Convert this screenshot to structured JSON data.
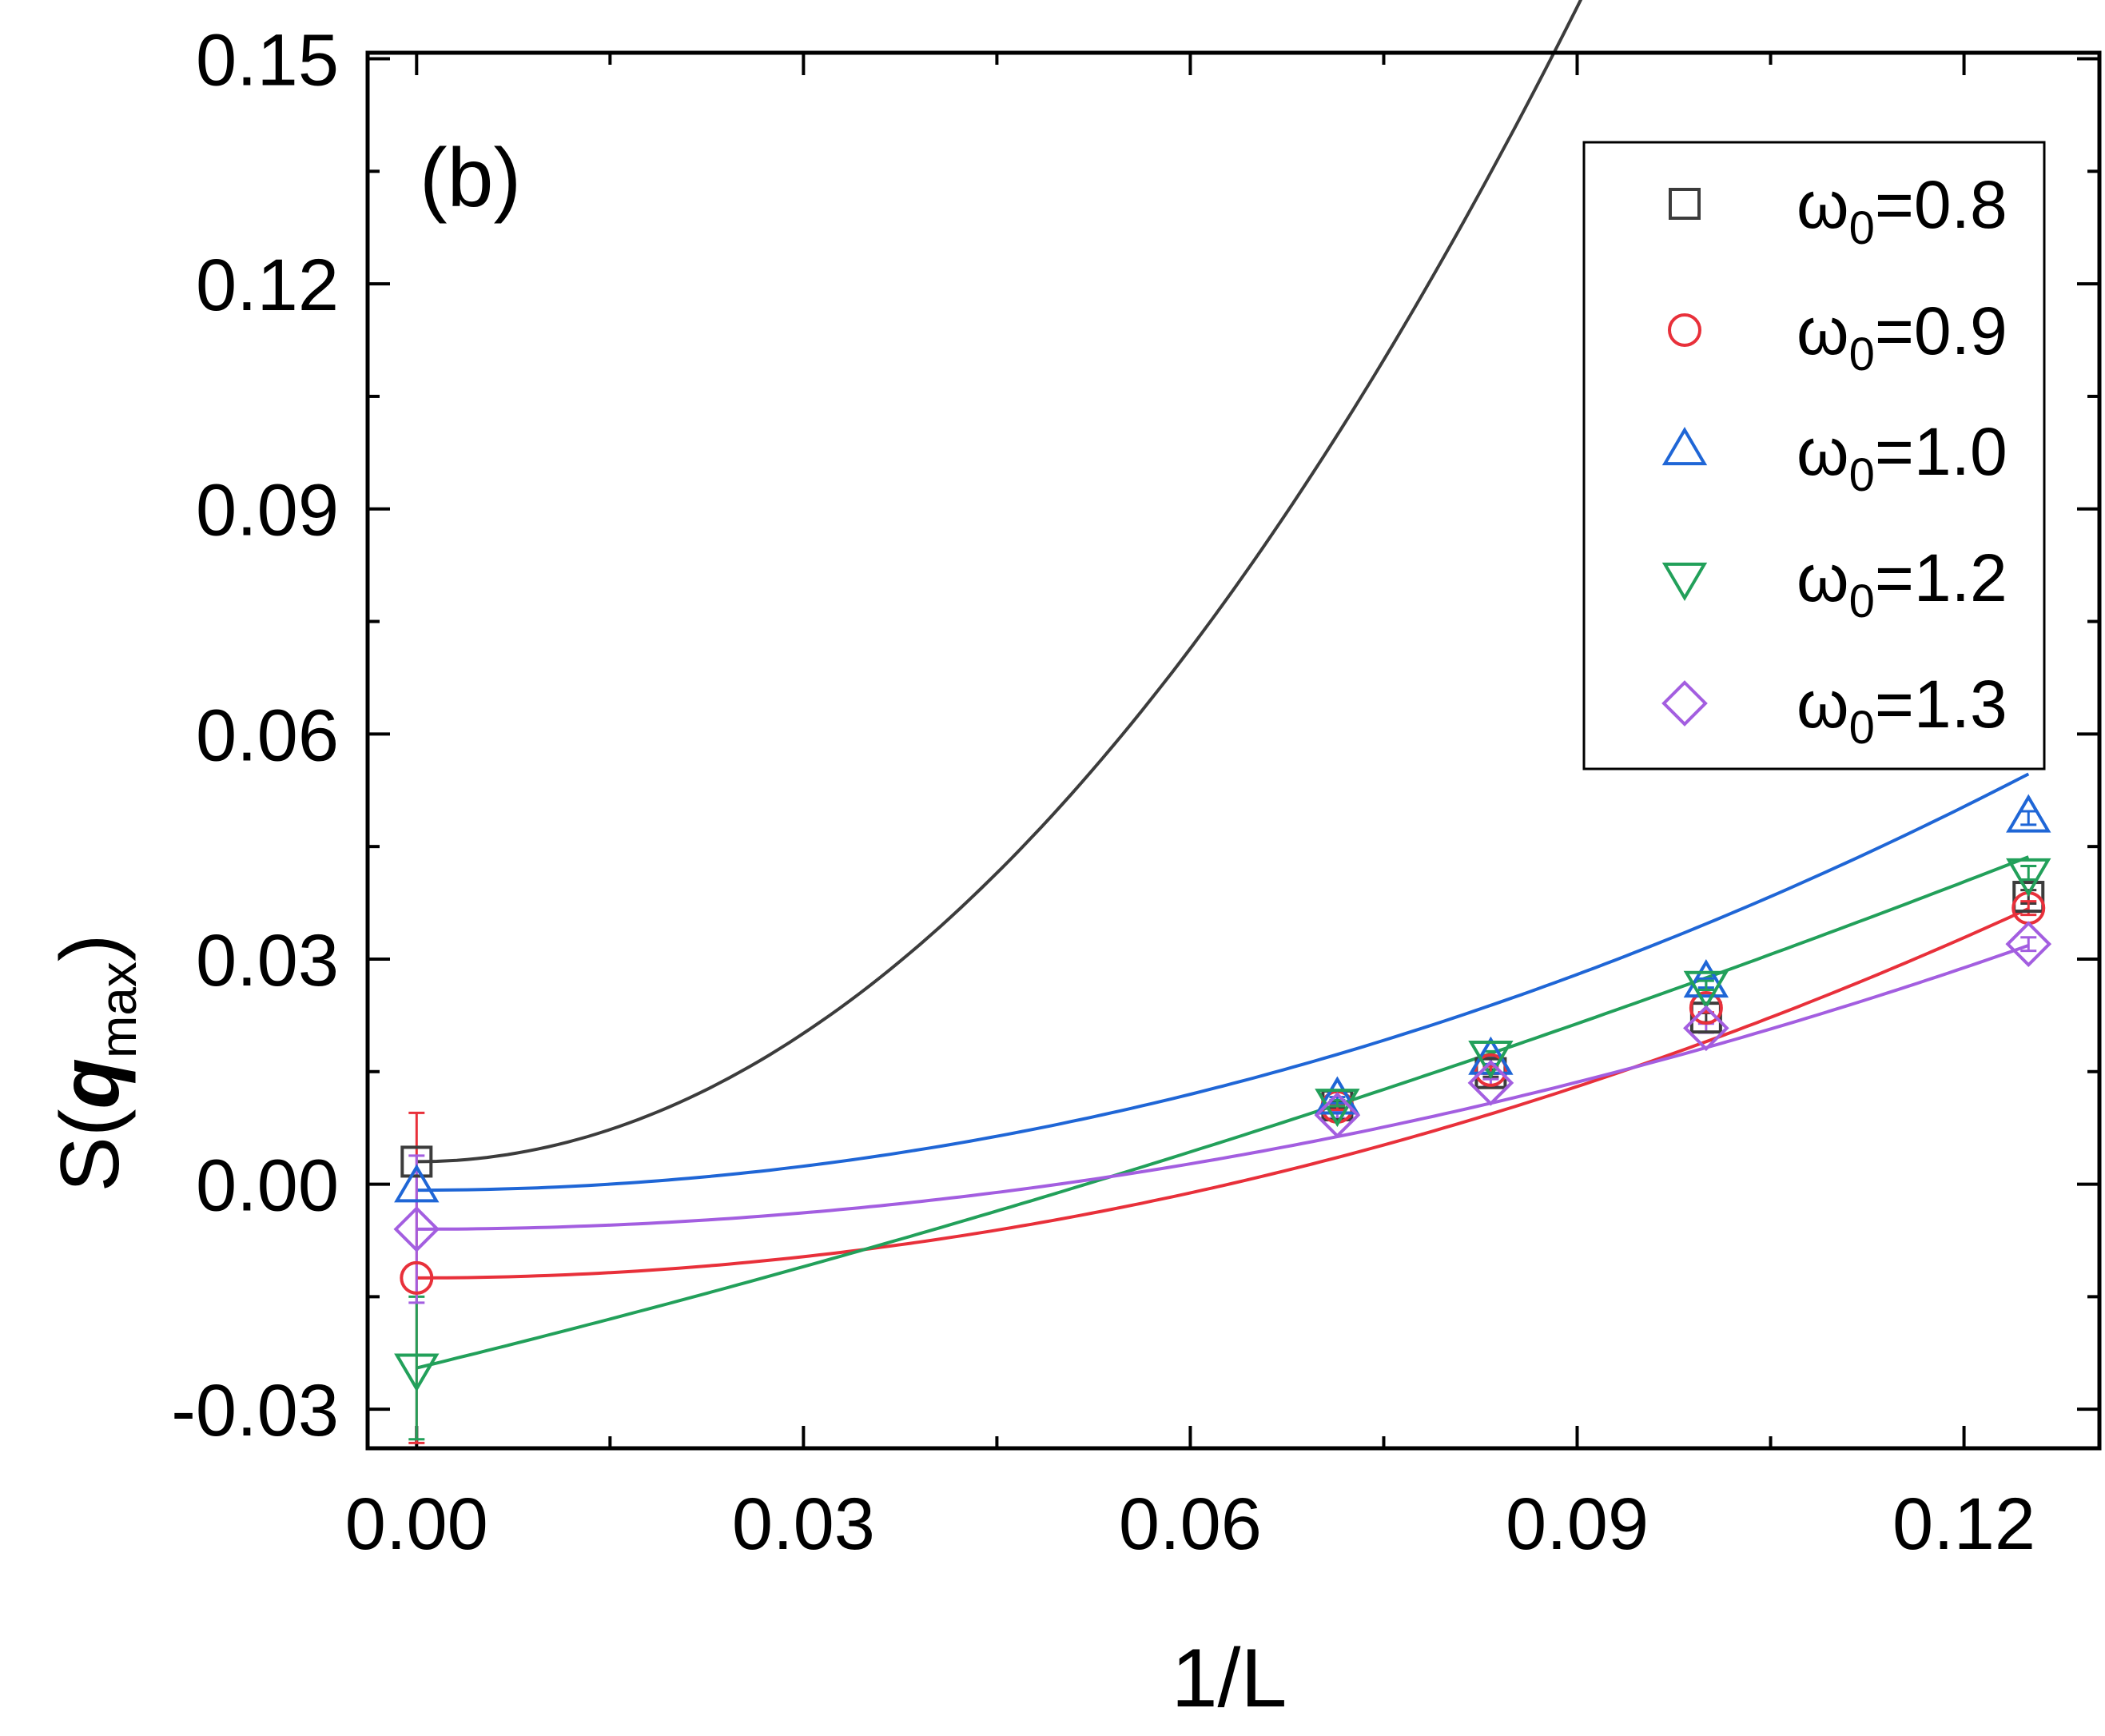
{
  "chart_data": {
    "type": "scatter",
    "panel_label": "(b)",
    "xlabel": "1/L",
    "ylabel": {
      "prefix": "S(",
      "symbol": "q",
      "subscript": "max",
      "suffix": ")"
    },
    "xlim": [
      -0.0038,
      0.1305
    ],
    "ylim": [
      -0.0352,
      0.1508
    ],
    "x_ticks": [
      {
        "value": 0.0,
        "label": "0.00"
      },
      {
        "value": 0.03,
        "label": "0.03"
      },
      {
        "value": 0.06,
        "label": "0.06"
      },
      {
        "value": 0.09,
        "label": "0.09"
      },
      {
        "value": 0.12,
        "label": "0.12"
      }
    ],
    "x_minor_ticks": [
      0.015,
      0.045,
      0.075,
      0.105
    ],
    "y_ticks": [
      {
        "value": -0.03,
        "label": "-0.03"
      },
      {
        "value": 0.0,
        "label": "0.00"
      },
      {
        "value": 0.03,
        "label": "0.03"
      },
      {
        "value": 0.06,
        "label": "0.06"
      },
      {
        "value": 0.09,
        "label": "0.09"
      },
      {
        "value": 0.12,
        "label": "0.12"
      },
      {
        "value": 0.15,
        "label": "0.15"
      }
    ],
    "y_minor_ticks": [
      -0.015,
      0.015,
      0.045,
      0.075,
      0.105,
      0.135
    ],
    "legend_position": "top-right",
    "series": [
      {
        "name": "ω0=0.8",
        "symbol": "ω",
        "subscript": "0",
        "value_text": "=0.8",
        "marker": "square",
        "color": "#3c3c3c",
        "points": [
          {
            "x": 0.0,
            "y": 0.003,
            "err": 0.0
          },
          {
            "x": 0.0714,
            "y": 0.0105,
            "err": 0.0004
          },
          {
            "x": 0.0833,
            "y": 0.0148,
            "err": 0.0005
          },
          {
            "x": 0.1,
            "y": 0.0222,
            "err": 0.0006
          },
          {
            "x": 0.125,
            "y": 0.0383,
            "err": 0.0009
          }
        ],
        "fit": [
          0.003,
          0.0,
          19.0
        ]
      },
      {
        "name": "ω0=0.9",
        "symbol": "ω",
        "subscript": "0",
        "value_text": "=0.9",
        "marker": "circle",
        "color": "#e8303a",
        "points": [
          {
            "x": 0.0,
            "y": -0.0125,
            "err": 0.022
          },
          {
            "x": 0.0714,
            "y": 0.0103,
            "err": 0.0004
          },
          {
            "x": 0.0833,
            "y": 0.0152,
            "err": 0.0005
          },
          {
            "x": 0.1,
            "y": 0.0235,
            "err": 0.0006
          },
          {
            "x": 0.125,
            "y": 0.0368,
            "err": 0.0009
          }
        ],
        "fit": [
          -0.0125,
          0.0,
          3.15
        ]
      },
      {
        "name": "ω0=1.0",
        "symbol": "ω",
        "subscript": "0",
        "value_text": "=1.0",
        "marker": "triangle-up",
        "color": "#1f66d6",
        "points": [
          {
            "x": 0.0,
            "y": -0.0005,
            "err": 0.0
          },
          {
            "x": 0.0714,
            "y": 0.0112,
            "err": 0.0004
          },
          {
            "x": 0.0833,
            "y": 0.0165,
            "err": 0.0005
          },
          {
            "x": 0.1,
            "y": 0.0268,
            "err": 0.0006
          },
          {
            "x": 0.125,
            "y": 0.0488,
            "err": 0.0009
          }
        ],
        "fit": [
          -0.0008,
          0.0,
          3.55
        ]
      },
      {
        "name": "ω0=1.2",
        "symbol": "ω",
        "subscript": "0",
        "value_text": "=1.2",
        "marker": "triangle-down",
        "color": "#22a05a",
        "points": [
          {
            "x": 0.0,
            "y": -0.0245,
            "err": 0.0095
          },
          {
            "x": 0.0714,
            "y": 0.0108,
            "err": 0.0004
          },
          {
            "x": 0.0833,
            "y": 0.0172,
            "err": 0.0005
          },
          {
            "x": 0.1,
            "y": 0.0265,
            "err": 0.0006
          },
          {
            "x": 0.125,
            "y": 0.0415,
            "err": 0.0009
          }
        ],
        "fit": [
          -0.0245,
          0.42,
          1.0
        ]
      },
      {
        "name": "ω0=1.3",
        "symbol": "ω",
        "subscript": "0",
        "value_text": "=1.3",
        "marker": "diamond",
        "color": "#a35ee0",
        "points": [
          {
            "x": 0.0,
            "y": -0.006,
            "err": 0.0098
          },
          {
            "x": 0.0714,
            "y": 0.0092,
            "err": 0.0004
          },
          {
            "x": 0.0833,
            "y": 0.0135,
            "err": 0.0005
          },
          {
            "x": 0.1,
            "y": 0.0208,
            "err": 0.0006
          },
          {
            "x": 0.125,
            "y": 0.032,
            "err": 0.0009
          }
        ],
        "fit": [
          -0.006,
          0.0,
          2.42
        ]
      }
    ]
  }
}
